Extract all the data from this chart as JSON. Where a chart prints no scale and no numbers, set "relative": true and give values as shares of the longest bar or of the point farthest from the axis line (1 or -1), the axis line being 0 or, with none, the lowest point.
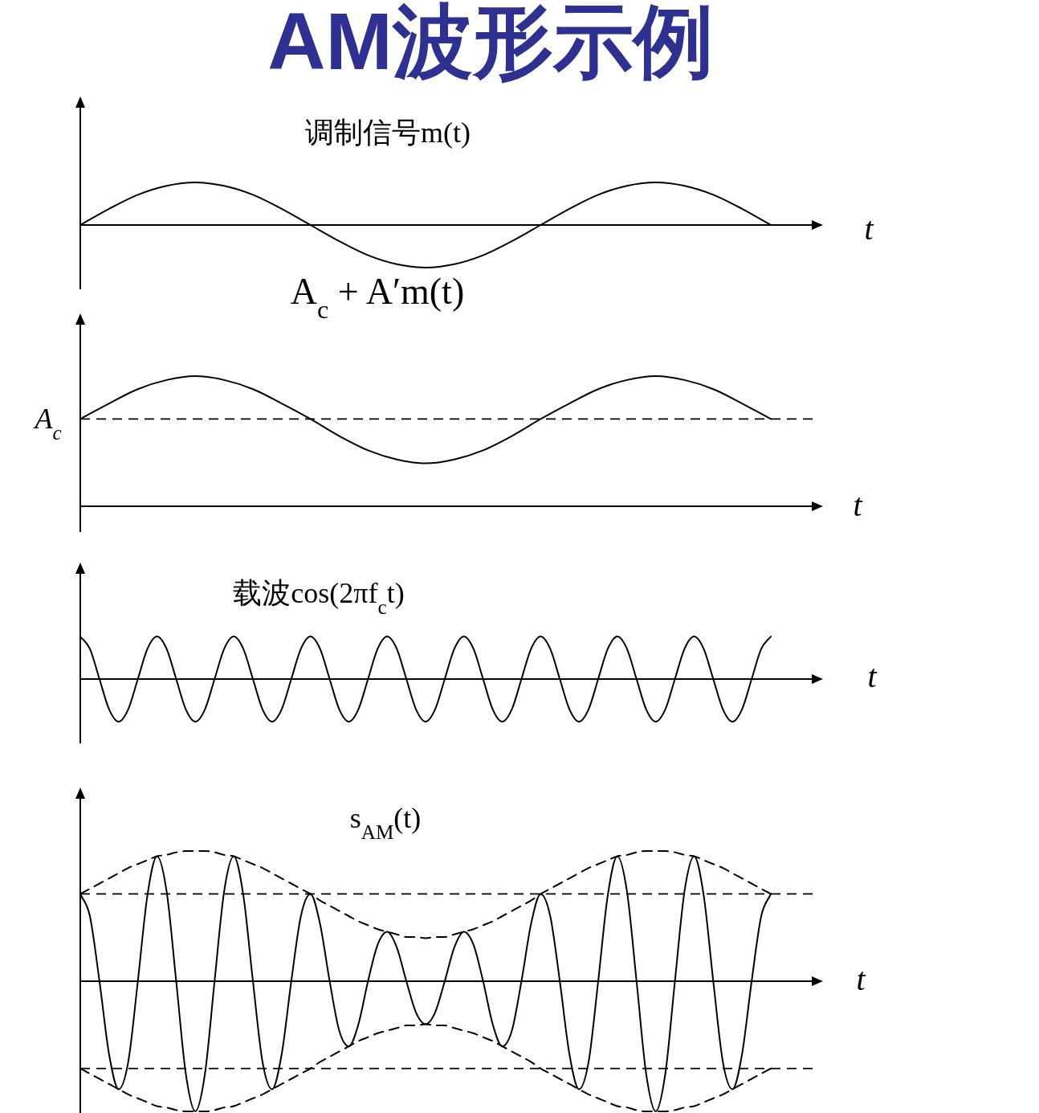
{
  "chart_data": [
    {
      "type": "line",
      "relative": true,
      "title": "AM波形示例",
      "xlabel": "t",
      "categories": [
        null,
        null,
        null,
        null,
        null,
        null,
        null,
        null,
        null,
        null,
        null,
        null,
        null,
        null,
        null,
        null,
        null,
        null,
        null,
        null,
        null,
        null,
        null,
        null,
        null
      ],
      "series": [
        {
          "name": "调制信号m(t)",
          "color": "#000000",
          "values": [
            0,
            0.38,
            0.71,
            0.92,
            1,
            0.92,
            0.71,
            0.38,
            0,
            -0.38,
            -0.71,
            -0.92,
            -1,
            -0.92,
            -0.71,
            -0.38,
            0,
            0.38,
            0.71,
            0.92,
            1,
            0.92,
            0.71,
            0.38,
            0
          ]
        }
      ]
    },
    {
      "type": "line",
      "relative": true,
      "xlabel": "t",
      "categories": [
        null,
        null,
        null,
        null,
        null,
        null,
        null,
        null,
        null,
        null,
        null,
        null,
        null,
        null,
        null,
        null,
        null,
        null,
        null,
        null,
        null,
        null,
        null,
        null,
        null
      ],
      "series": [
        {
          "name": "A$_{c}$ + A′m(t)",
          "color": "#000000",
          "values": [
            0.67,
            0.79,
            0.9,
            0.97,
            1,
            0.97,
            0.9,
            0.79,
            0.67,
            0.54,
            0.43,
            0.36,
            0.33,
            0.36,
            0.43,
            0.54,
            0.67,
            0.79,
            0.9,
            0.97,
            1,
            0.97,
            0.9,
            0.79,
            0.67
          ]
        }
      ],
      "ref_lines": [
        {
          "axis": "y",
          "value": 0.67,
          "label": "A$_{c}$",
          "color": "#000000",
          "line_style": "dashed"
        }
      ]
    },
    {
      "type": "line",
      "relative": true,
      "xlabel": "t",
      "categories": [
        null,
        null,
        null,
        null,
        null,
        null,
        null,
        null,
        null,
        null,
        null,
        null,
        null,
        null,
        null,
        null,
        null,
        null,
        null,
        null,
        null,
        null,
        null,
        null,
        null,
        null,
        null,
        null,
        null,
        null,
        null,
        null,
        null,
        null,
        null,
        null,
        null,
        null,
        null,
        null,
        null,
        null,
        null,
        null,
        null,
        null,
        null,
        null,
        null,
        null,
        null,
        null,
        null,
        null,
        null,
        null,
        null,
        null,
        null,
        null,
        null,
        null,
        null,
        null,
        null,
        null,
        null,
        null,
        null,
        null,
        null,
        null,
        null
      ],
      "series": [
        {
          "name": "载波cos(2πf$_{c}$t)",
          "color": "#000000",
          "values": [
            1,
            0.71,
            0,
            -0.71,
            -1,
            -0.71,
            0,
            0.71,
            1,
            0.71,
            0,
            -0.71,
            -1,
            -0.71,
            0,
            0.71,
            1,
            0.71,
            0,
            -0.71,
            -1,
            -0.71,
            0,
            0.71,
            1,
            0.71,
            0,
            -0.71,
            -1,
            -0.71,
            0,
            0.71,
            1,
            0.71,
            0,
            -0.71,
            -1,
            -0.71,
            0,
            0.71,
            1,
            0.71,
            0,
            -0.71,
            -1,
            -0.71,
            0,
            0.71,
            1,
            0.71,
            0,
            -0.71,
            -1,
            -0.71,
            0,
            0.71,
            1,
            0.71,
            0,
            -0.71,
            -1,
            -0.71,
            0,
            0.71,
            1,
            0.71,
            0,
            -0.71,
            -1,
            -0.71,
            0,
            0.71,
            1
          ]
        }
      ]
    },
    {
      "type": "line",
      "relative": true,
      "xlabel": "t",
      "categories": [
        null,
        null,
        null,
        null,
        null,
        null,
        null,
        null,
        null,
        null,
        null,
        null,
        null,
        null,
        null,
        null,
        null,
        null,
        null,
        null,
        null,
        null,
        null,
        null,
        null,
        null,
        null,
        null,
        null,
        null,
        null,
        null,
        null,
        null,
        null,
        null,
        null,
        null,
        null,
        null,
        null,
        null,
        null,
        null,
        null,
        null,
        null,
        null,
        null,
        null,
        null,
        null,
        null,
        null,
        null,
        null,
        null,
        null,
        null,
        null,
        null,
        null,
        null,
        null,
        null,
        null,
        null,
        null,
        null,
        null,
        null,
        null,
        null
      ],
      "series": [
        {
          "color": "#000000",
          "line_style": "dashed",
          "values": [
            0.67,
            0.71,
            0.75,
            0.79,
            0.83,
            0.87,
            0.9,
            0.93,
            0.96,
            0.97,
            0.99,
            1,
            1,
            1,
            0.99,
            0.97,
            0.96,
            0.93,
            0.9,
            0.87,
            0.83,
            0.79,
            0.75,
            0.71,
            0.67,
            0.62,
            0.58,
            0.54,
            0.5,
            0.46,
            0.43,
            0.4,
            0.38,
            0.36,
            0.34,
            0.34,
            0.33,
            0.34,
            0.34,
            0.36,
            0.38,
            0.4,
            0.43,
            0.46,
            0.5,
            0.54,
            0.58,
            0.62,
            0.67,
            0.71,
            0.75,
            0.79,
            0.83,
            0.87,
            0.9,
            0.93,
            0.96,
            0.97,
            0.99,
            1,
            1,
            1,
            0.99,
            0.97,
            0.96,
            0.93,
            0.9,
            0.87,
            0.83,
            0.79,
            0.75,
            0.71,
            0.67
          ]
        },
        {
          "color": "#000000",
          "line_style": "dashed",
          "values": [
            -0.67,
            -0.71,
            -0.75,
            -0.79,
            -0.83,
            -0.87,
            -0.9,
            -0.93,
            -0.96,
            -0.97,
            -0.99,
            -1,
            -1,
            -1,
            -0.99,
            -0.97,
            -0.96,
            -0.93,
            -0.9,
            -0.87,
            -0.83,
            -0.79,
            -0.75,
            -0.71,
            -0.67,
            -0.62,
            -0.58,
            -0.54,
            -0.5,
            -0.46,
            -0.43,
            -0.4,
            -0.38,
            -0.36,
            -0.34,
            -0.34,
            -0.33,
            -0.34,
            -0.34,
            -0.36,
            -0.38,
            -0.4,
            -0.43,
            -0.46,
            -0.5,
            -0.54,
            -0.58,
            -0.62,
            -0.67,
            -0.71,
            -0.75,
            -0.79,
            -0.83,
            -0.87,
            -0.9,
            -0.93,
            -0.96,
            -0.97,
            -0.99,
            -1,
            -1,
            -1,
            -0.99,
            -0.97,
            -0.96,
            -0.93,
            -0.9,
            -0.87,
            -0.83,
            -0.79,
            -0.75,
            -0.71,
            -0.67
          ]
        },
        {
          "name": "s$_{AM}$(t)",
          "color": "#000000",
          "values": [
            0.67,
            0.5,
            0,
            -0.56,
            -0.83,
            -0.62,
            0,
            0.66,
            0.96,
            0.69,
            0,
            -0.71,
            -1,
            -0.71,
            0,
            0.69,
            0.96,
            0.66,
            0,
            -0.62,
            -0.83,
            -0.56,
            0,
            0.5,
            0.67,
            0.44,
            0,
            -0.38,
            -0.5,
            -0.33,
            0,
            0.28,
            0.38,
            0.26,
            0,
            -0.24,
            -0.33,
            -0.24,
            0,
            0.26,
            0.38,
            0.28,
            0,
            -0.33,
            -0.5,
            -0.38,
            0,
            0.44,
            0.67,
            0.5,
            0,
            -0.56,
            -0.83,
            -0.62,
            0,
            0.66,
            0.96,
            0.69,
            0,
            -0.71,
            -1,
            -0.71,
            0,
            0.69,
            0.96,
            0.66,
            0,
            -0.62,
            -0.83,
            -0.56,
            0,
            0.5,
            0.67
          ]
        }
      ],
      "ref_lines": [
        {
          "axis": "y",
          "value": 0.67,
          "color": "#000000",
          "line_style": "dashed"
        },
        {
          "axis": "y",
          "value": -0.67,
          "color": "#000000",
          "line_style": "dashed"
        }
      ]
    }
  ]
}
